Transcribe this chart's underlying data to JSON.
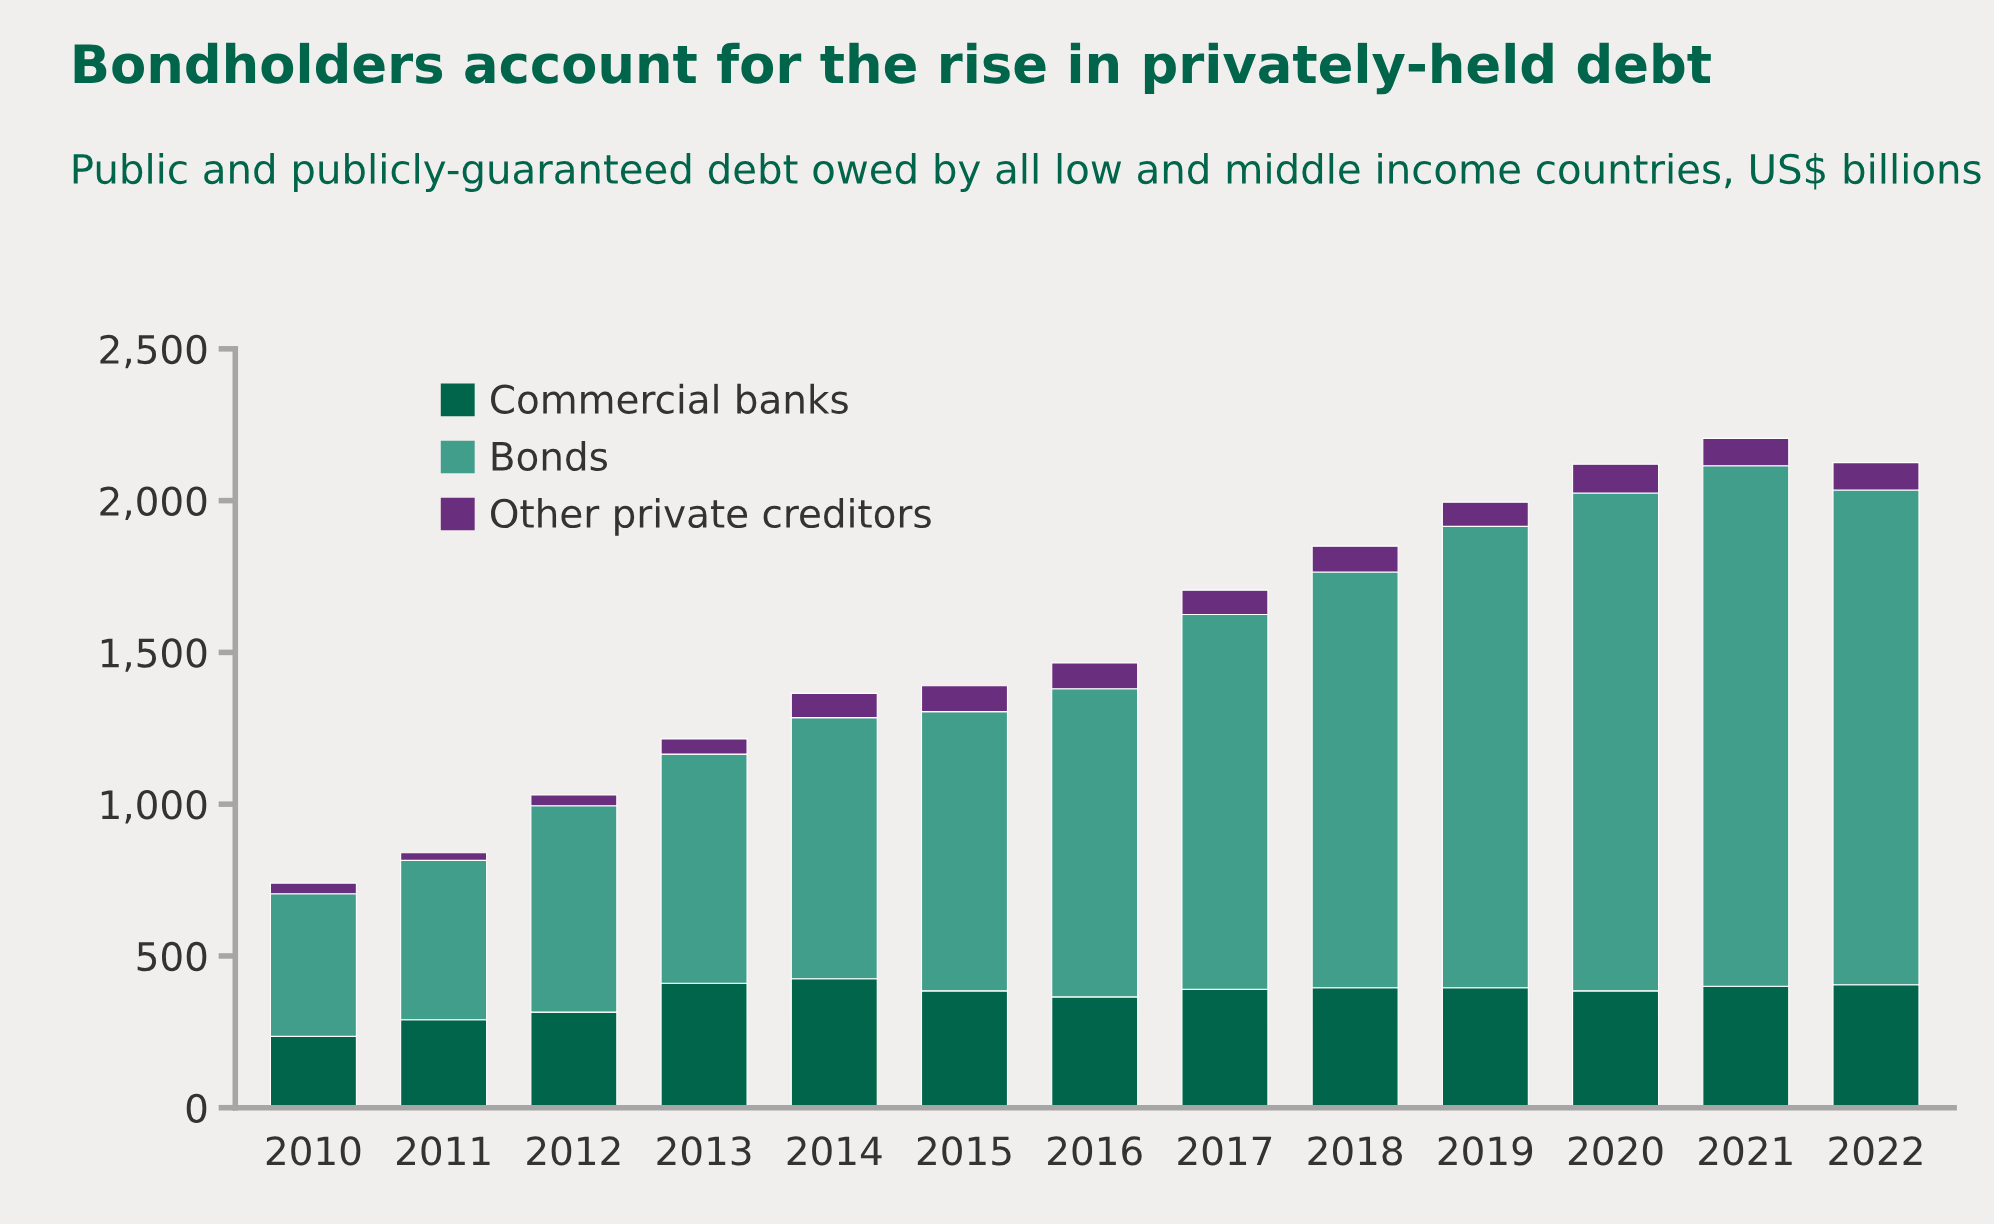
{
  "chart_data": {
    "type": "bar",
    "stacked": true,
    "title": "Bondholders account for the rise in privately-held debt",
    "subtitle": "Public and publicly-guaranteed debt owed by all low and middle income countries, US$ billions",
    "categories": [
      "2010",
      "2011",
      "2012",
      "2013",
      "2014",
      "2015",
      "2016",
      "2017",
      "2018",
      "2019",
      "2020",
      "2021",
      "2022"
    ],
    "series": [
      {
        "name": "Commercial banks",
        "color": "#00654a",
        "values": [
          235,
          290,
          315,
          410,
          425,
          385,
          365,
          390,
          395,
          395,
          385,
          400,
          405
        ]
      },
      {
        "name": "Bonds",
        "color": "#409e8a",
        "values": [
          470,
          525,
          680,
          755,
          860,
          920,
          1015,
          1235,
          1370,
          1520,
          1640,
          1715,
          1630
        ]
      },
      {
        "name": "Other private creditors",
        "color": "#6a2e7e",
        "values": [
          35,
          25,
          35,
          50,
          80,
          85,
          85,
          80,
          85,
          80,
          95,
          90,
          90
        ]
      }
    ],
    "ylim": [
      0,
      2500
    ],
    "yticks": [
      0,
      {
        "value": 500,
        "label": "500"
      },
      {
        "value": 1000,
        "label": "1,000"
      },
      {
        "value": 1500,
        "label": "1,500"
      },
      {
        "value": 2000,
        "label": "2,000"
      },
      {
        "value": 2500,
        "label": "2,500"
      }
    ],
    "grid": false,
    "legend": "top left"
  }
}
